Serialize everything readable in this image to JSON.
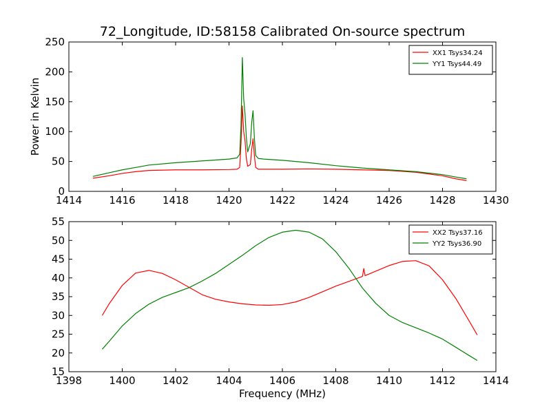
{
  "title": "72_Longitude, ID:58158 Calibrated On-source spectrum",
  "chart_data": [
    {
      "type": "line",
      "ylabel": "Power in Kelvin",
      "xlabel": "",
      "xlim": [
        1414,
        1430
      ],
      "ylim": [
        0,
        250
      ],
      "xticks": [
        "1414",
        "1416",
        "1418",
        "1420",
        "1422",
        "1424",
        "1426",
        "1428",
        "1430"
      ],
      "yticks": [
        "0",
        "50",
        "100",
        "150",
        "200",
        "250"
      ],
      "legend_position": "top-right",
      "series": [
        {
          "name": "XX1 Tsys34.24",
          "color": "#ff0000",
          "x": [
            1414.9,
            1415.5,
            1416.0,
            1416.5,
            1417.0,
            1418.0,
            1419.0,
            1420.0,
            1420.3,
            1420.4,
            1420.45,
            1420.5,
            1420.55,
            1420.6,
            1420.65,
            1420.7,
            1420.8,
            1420.85,
            1420.9,
            1420.95,
            1421.0,
            1421.1,
            1421.3,
            1422.0,
            1423.0,
            1424.0,
            1425.0,
            1426.0,
            1427.0,
            1428.0,
            1428.5,
            1428.9
          ],
          "y": [
            22,
            26,
            30,
            33,
            35,
            36,
            36,
            36.5,
            37,
            40,
            80,
            143,
            100,
            85,
            55,
            42,
            45,
            70,
            88,
            60,
            40,
            37,
            37,
            37,
            37.5,
            37,
            36,
            35,
            32,
            26,
            21,
            18
          ]
        },
        {
          "name": "YY1 Tsys44.49",
          "color": "#008000",
          "x": [
            1414.9,
            1415.5,
            1416.0,
            1416.5,
            1417.0,
            1418.0,
            1419.0,
            1420.0,
            1420.3,
            1420.4,
            1420.45,
            1420.5,
            1420.55,
            1420.6,
            1420.65,
            1420.7,
            1420.8,
            1420.85,
            1420.9,
            1420.95,
            1421.0,
            1421.1,
            1421.3,
            1422.0,
            1423.0,
            1424.0,
            1425.0,
            1426.0,
            1427.0,
            1428.0,
            1428.5,
            1428.9
          ],
          "y": [
            25,
            31,
            36,
            40,
            44,
            48,
            51,
            54,
            56,
            62,
            110,
            224,
            155,
            130,
            90,
            66,
            80,
            115,
            135,
            90,
            60,
            55,
            54,
            52,
            48,
            43,
            39,
            36,
            33,
            28,
            24,
            21
          ]
        }
      ]
    },
    {
      "type": "line",
      "ylabel": "",
      "xlabel": "Frequency (MHz)",
      "xlim": [
        1398,
        1414
      ],
      "ylim": [
        15,
        55
      ],
      "xticks": [
        "1398",
        "1400",
        "1402",
        "1404",
        "1406",
        "1408",
        "1410",
        "1412",
        "1414"
      ],
      "yticks": [
        "15",
        "20",
        "25",
        "30",
        "35",
        "40",
        "45",
        "50",
        "55"
      ],
      "legend_position": "top-right",
      "series": [
        {
          "name": "XX2 Tsys37.16",
          "color": "#ff0000",
          "x": [
            1399.25,
            1399.5,
            1400.0,
            1400.5,
            1401.0,
            1401.5,
            1402.0,
            1402.5,
            1403.0,
            1403.5,
            1404.0,
            1404.5,
            1405.0,
            1405.5,
            1406.0,
            1406.5,
            1407.0,
            1407.5,
            1408.0,
            1408.5,
            1409.0,
            1409.05,
            1409.1,
            1409.5,
            1410.0,
            1410.5,
            1411.0,
            1411.5,
            1412.0,
            1412.5,
            1413.0,
            1413.3
          ],
          "y": [
            30,
            33,
            38,
            41.3,
            42,
            41.2,
            39.5,
            37.5,
            35.5,
            34.3,
            33.6,
            33.1,
            32.8,
            32.7,
            32.9,
            33.6,
            34.8,
            36.3,
            37.8,
            39.1,
            40.4,
            42.5,
            40.6,
            41.8,
            43.3,
            44.4,
            44.6,
            43.2,
            39.5,
            34.5,
            28.5,
            24.8
          ]
        },
        {
          "name": "YY2 Tsys36.90",
          "color": "#008000",
          "x": [
            1399.25,
            1399.5,
            1400.0,
            1400.5,
            1401.0,
            1401.5,
            1402.0,
            1402.5,
            1403.0,
            1403.5,
            1404.0,
            1404.5,
            1405.0,
            1405.5,
            1406.0,
            1406.5,
            1407.0,
            1407.5,
            1408.0,
            1408.5,
            1409.0,
            1409.5,
            1410.0,
            1410.5,
            1411.0,
            1411.5,
            1412.0,
            1412.5,
            1413.0,
            1413.3
          ],
          "y": [
            21,
            23,
            27.2,
            30.5,
            33,
            34.8,
            36.1,
            37.4,
            39.2,
            41.2,
            43.6,
            46,
            48.6,
            50.8,
            52.2,
            52.7,
            52.2,
            50.4,
            47,
            42.5,
            37.3,
            33.2,
            30,
            28.1,
            26.7,
            25.3,
            23.7,
            21.5,
            19.3,
            18
          ]
        }
      ]
    }
  ]
}
